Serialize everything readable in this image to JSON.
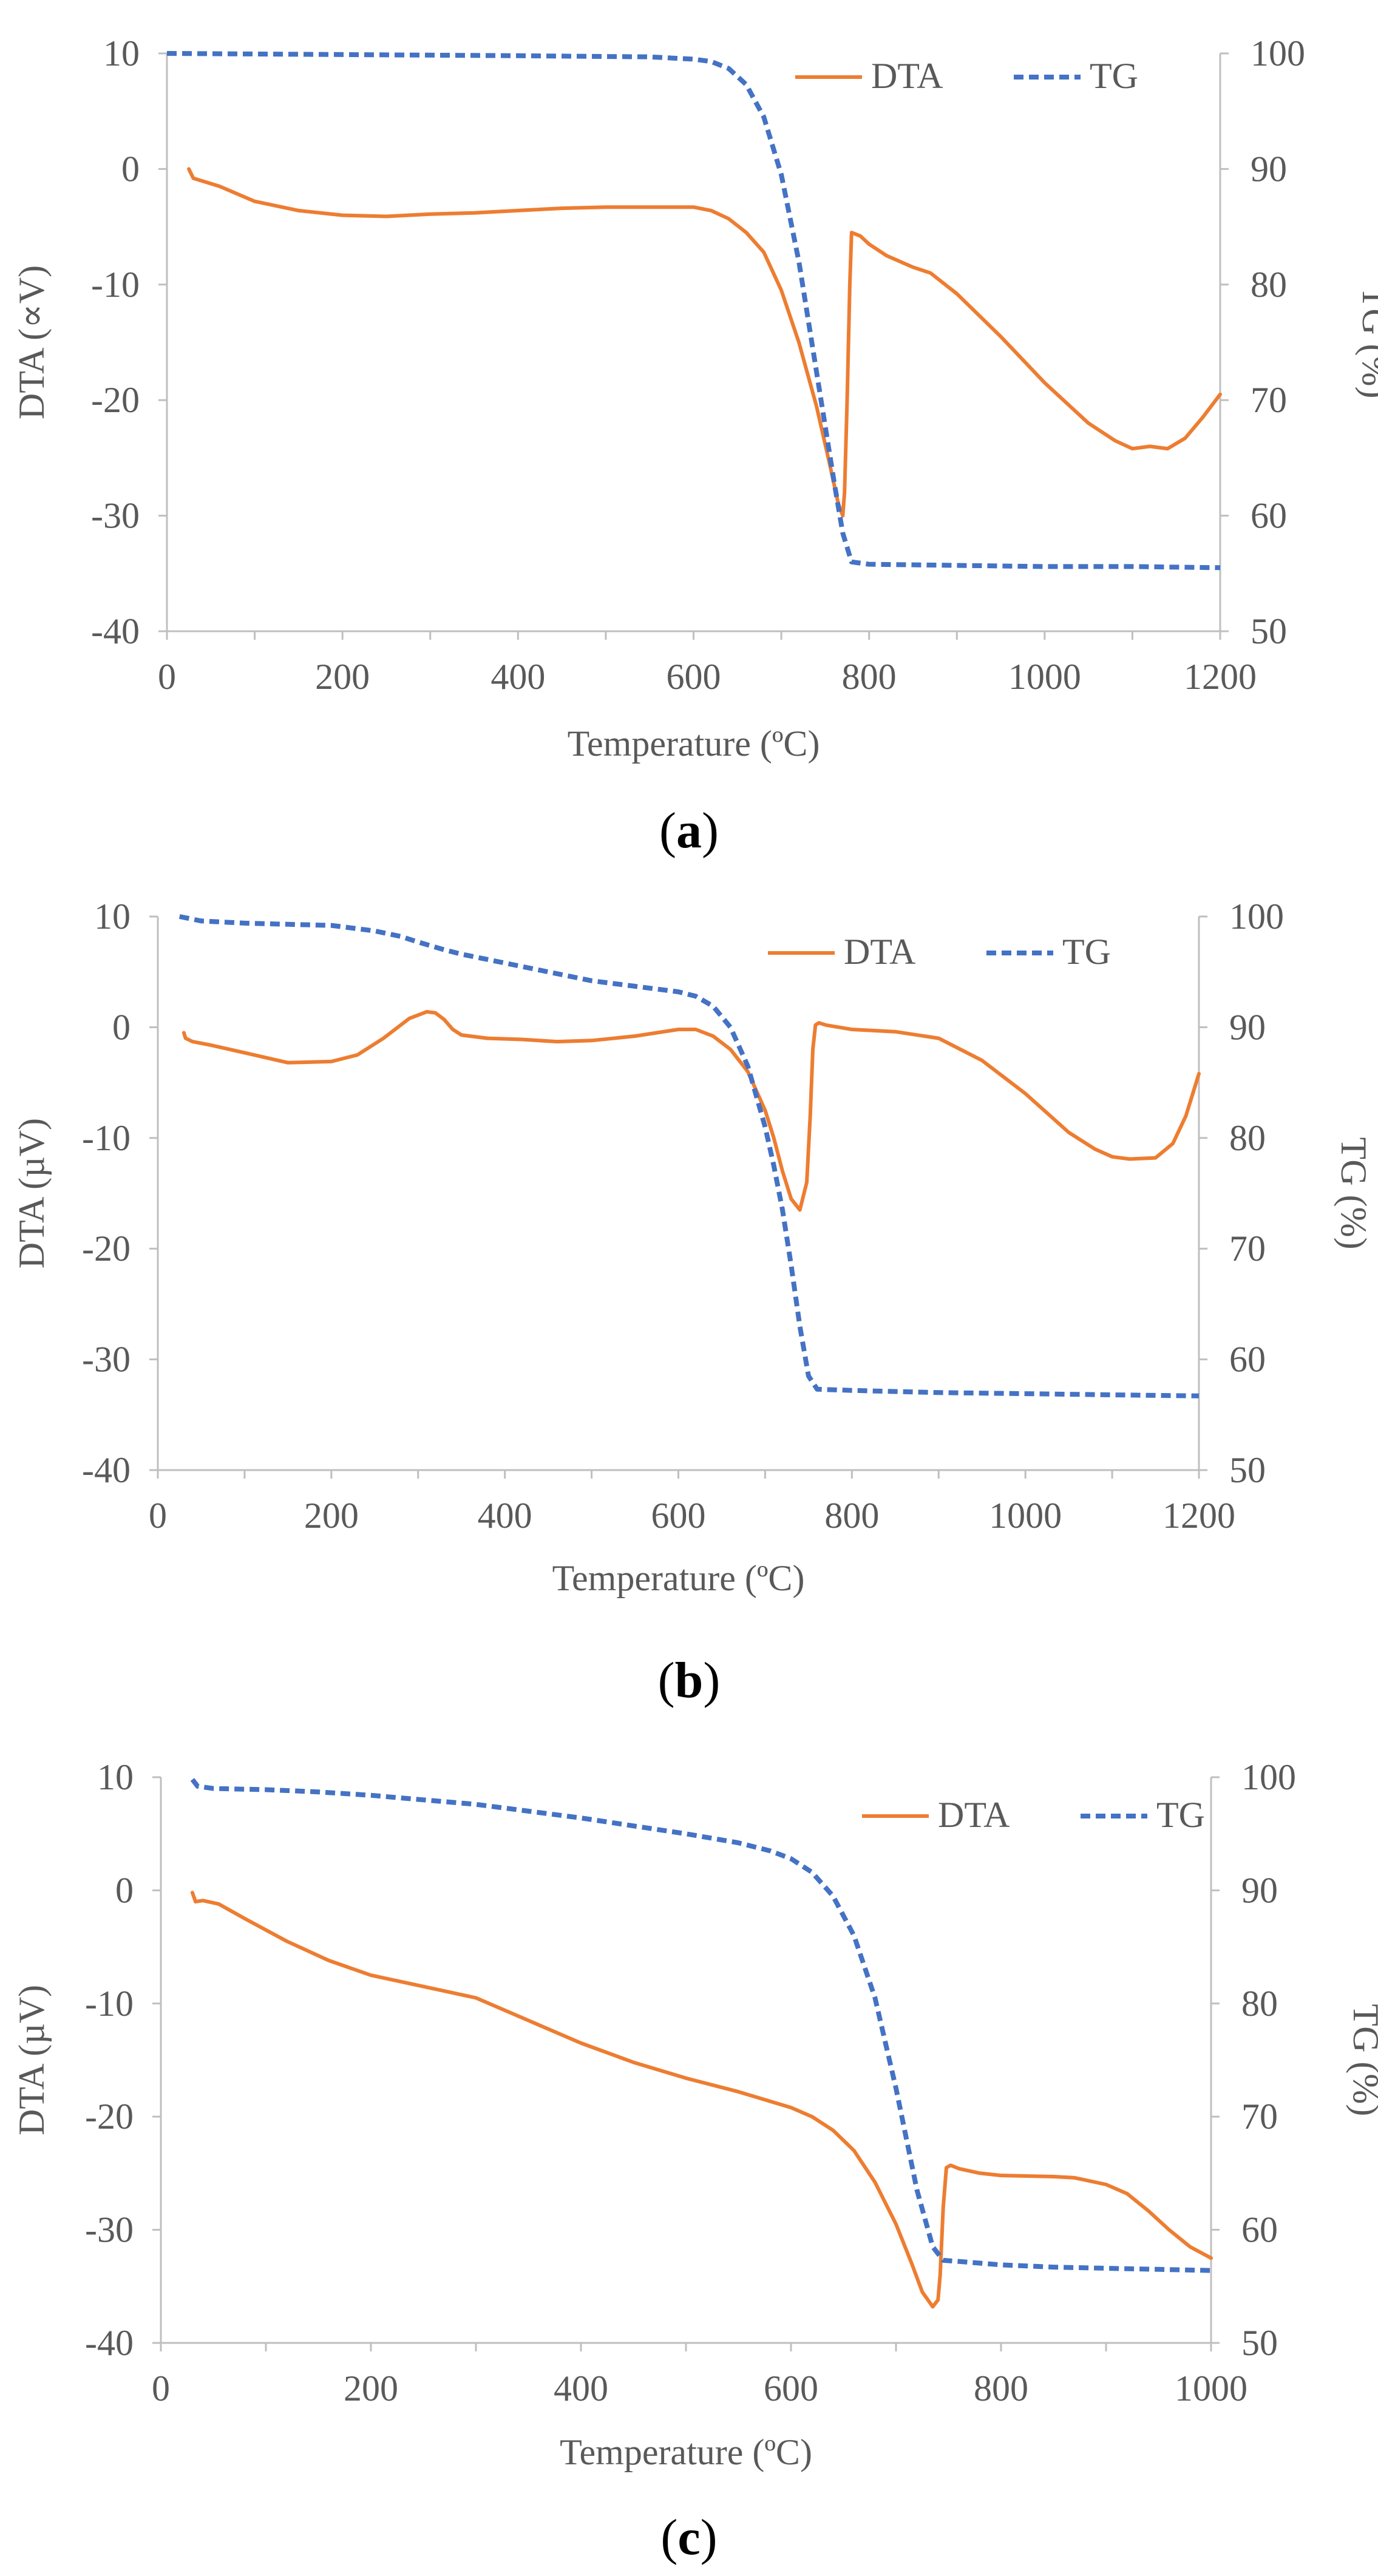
{
  "colors": {
    "dta": "#ED7D31",
    "tg": "#4472C4",
    "axis": "#BFBFBF",
    "text": "#595959"
  },
  "chart_data": [
    {
      "type": "line",
      "panel_label": "a",
      "xlabel": "Temperature (ºC)",
      "ylabel": "DTA (∝V)",
      "y2label": "TG (%)",
      "xlim": [
        0,
        1200
      ],
      "ylim": [
        -40,
        10
      ],
      "y2lim": [
        50,
        100
      ],
      "xticks": [
        "0",
        "200",
        "400",
        "600",
        "800",
        "1000",
        "1200"
      ],
      "yticks": [
        "-40",
        "-30",
        "-20",
        "-10",
        "0",
        "10"
      ],
      "y2ticks": [
        "50",
        "60",
        "70",
        "80",
        "90",
        "100"
      ],
      "legend": [
        "DTA",
        "TG"
      ],
      "series": [
        {
          "name": "DTA",
          "axis": "left",
          "style": "solid",
          "x": [
            25,
            30,
            60,
            100,
            150,
            200,
            250,
            300,
            350,
            400,
            450,
            500,
            550,
            600,
            620,
            640,
            660,
            680,
            700,
            720,
            740,
            755,
            765,
            770,
            772,
            775,
            778,
            780,
            790,
            800,
            820,
            850,
            870,
            900,
            950,
            1000,
            1050,
            1080,
            1100,
            1120,
            1140,
            1160,
            1180,
            1200
          ],
          "y": [
            0,
            -0.8,
            -1.5,
            -2.8,
            -3.6,
            -4.0,
            -4.1,
            -3.9,
            -3.8,
            -3.6,
            -3.4,
            -3.3,
            -3.3,
            -3.3,
            -3.6,
            -4.3,
            -5.5,
            -7.2,
            -10.5,
            -15,
            -20.5,
            -25.5,
            -29,
            -30,
            -28,
            -20,
            -10,
            -5.5,
            -5.8,
            -6.5,
            -7.5,
            -8.5,
            -9.0,
            -10.8,
            -14.5,
            -18.5,
            -22,
            -23.5,
            -24.2,
            -24.0,
            -24.2,
            -23.3,
            -21.5,
            -19.5
          ]
        },
        {
          "name": "TG",
          "axis": "right",
          "style": "dashed",
          "x": [
            0,
            200,
            400,
            550,
            600,
            620,
            640,
            660,
            680,
            700,
            720,
            740,
            760,
            770,
            780,
            800,
            900,
            1000,
            1100,
            1200
          ],
          "y": [
            100,
            99.9,
            99.8,
            99.7,
            99.5,
            99.3,
            98.7,
            97.3,
            94.5,
            89.5,
            82.0,
            72.5,
            63.0,
            58.5,
            56.0,
            55.8,
            55.7,
            55.6,
            55.6,
            55.5
          ]
        }
      ]
    },
    {
      "type": "line",
      "panel_label": "b",
      "xlabel": "Temperature (ºC)",
      "ylabel": "DTA (µV)",
      "y2label": "TG (%)",
      "xlim": [
        0,
        1200
      ],
      "ylim": [
        -40,
        10
      ],
      "y2lim": [
        50,
        100
      ],
      "xticks": [
        "0",
        "200",
        "400",
        "600",
        "800",
        "1000",
        "1200"
      ],
      "yticks": [
        "-40",
        "-30",
        "-20",
        "-10",
        "0",
        "10"
      ],
      "y2ticks": [
        "50",
        "60",
        "70",
        "80",
        "90",
        "100"
      ],
      "legend": [
        "DTA",
        "TG"
      ],
      "series": [
        {
          "name": "DTA",
          "axis": "left",
          "style": "solid",
          "x": [
            30,
            32,
            40,
            60,
            100,
            150,
            200,
            230,
            260,
            290,
            310,
            320,
            330,
            340,
            350,
            380,
            420,
            460,
            500,
            550,
            600,
            620,
            640,
            660,
            680,
            700,
            710,
            720,
            730,
            740,
            748,
            752,
            755,
            758,
            762,
            770,
            800,
            850,
            900,
            950,
            1000,
            1050,
            1080,
            1100,
            1120,
            1150,
            1170,
            1185,
            1200
          ],
          "y": [
            -0.5,
            -1.0,
            -1.3,
            -1.6,
            -2.3,
            -3.2,
            -3.1,
            -2.5,
            -1.0,
            0.8,
            1.4,
            1.3,
            0.7,
            -0.2,
            -0.7,
            -1.0,
            -1.1,
            -1.3,
            -1.2,
            -0.8,
            -0.2,
            -0.2,
            -0.8,
            -2.0,
            -4.0,
            -7.5,
            -10,
            -13,
            -15.5,
            -16.5,
            -14,
            -8,
            -2,
            0.2,
            0.4,
            0.2,
            -0.2,
            -0.4,
            -1.0,
            -3.0,
            -6.0,
            -9.5,
            -11,
            -11.7,
            -11.9,
            -11.8,
            -10.5,
            -8,
            -4.2
          ]
        },
        {
          "name": "TG",
          "axis": "right",
          "style": "dashed",
          "x": [
            25,
            50,
            100,
            150,
            200,
            250,
            280,
            300,
            330,
            350,
            400,
            450,
            500,
            550,
            600,
            620,
            640,
            660,
            680,
            700,
            710,
            720,
            730,
            740,
            750,
            760,
            800,
            900,
            1000,
            1100,
            1200
          ],
          "y": [
            100,
            99.6,
            99.4,
            99.3,
            99.2,
            98.7,
            98.2,
            97.7,
            97.0,
            96.6,
            95.8,
            95.0,
            94.2,
            93.7,
            93.2,
            92.8,
            91.9,
            90.0,
            86.5,
            81.0,
            77.5,
            73.5,
            68.5,
            63.0,
            58.5,
            57.3,
            57.2,
            57.0,
            56.9,
            56.8,
            56.7
          ]
        }
      ]
    },
    {
      "type": "line",
      "panel_label": "c",
      "xlabel": "Temperature (ºC)",
      "ylabel": "DTA (µV)",
      "y2label": "TG (%)",
      "xlim": [
        0,
        1000
      ],
      "ylim": [
        -40,
        10
      ],
      "y2lim": [
        50,
        100
      ],
      "xticks": [
        "0",
        "200",
        "400",
        "600",
        "800",
        "1000"
      ],
      "yticks": [
        "-40",
        "-30",
        "-20",
        "-10",
        "0",
        "10"
      ],
      "y2ticks": [
        "50",
        "60",
        "70",
        "80",
        "90",
        "100"
      ],
      "legend": [
        "DTA",
        "TG"
      ],
      "series": [
        {
          "name": "DTA",
          "axis": "left",
          "style": "solid",
          "x": [
            30,
            33,
            40,
            55,
            80,
            120,
            160,
            200,
            250,
            300,
            350,
            400,
            450,
            500,
            550,
            600,
            620,
            640,
            660,
            680,
            700,
            715,
            725,
            735,
            740,
            742,
            745,
            748,
            752,
            760,
            780,
            800,
            850,
            870,
            900,
            920,
            940,
            960,
            980,
            1000
          ],
          "y": [
            -0.2,
            -1.0,
            -0.9,
            -1.2,
            -2.5,
            -4.5,
            -6.2,
            -7.5,
            -8.5,
            -9.5,
            -11.5,
            -13.5,
            -15.2,
            -16.6,
            -17.8,
            -19.2,
            -20.0,
            -21.2,
            -23.0,
            -25.8,
            -29.5,
            -33.0,
            -35.5,
            -36.8,
            -36.2,
            -34.0,
            -28.0,
            -24.5,
            -24.3,
            -24.6,
            -25.0,
            -25.2,
            -25.3,
            -25.4,
            -26.0,
            -26.8,
            -28.3,
            -30.0,
            -31.5,
            -32.5
          ]
        },
        {
          "name": "TG",
          "axis": "right",
          "style": "dashed",
          "x": [
            30,
            35,
            50,
            100,
            150,
            200,
            250,
            300,
            350,
            400,
            450,
            500,
            550,
            580,
            600,
            620,
            640,
            660,
            680,
            700,
            720,
            735,
            745,
            760,
            800,
            850,
            900,
            950,
            1000
          ],
          "y": [
            99.8,
            99.2,
            99.0,
            98.9,
            98.7,
            98.4,
            98.0,
            97.6,
            97.0,
            96.4,
            95.7,
            95.0,
            94.2,
            93.5,
            92.8,
            91.6,
            89.5,
            86.0,
            80.5,
            72.5,
            63.5,
            58.5,
            57.3,
            57.2,
            56.9,
            56.7,
            56.6,
            56.5,
            56.4
          ]
        }
      ]
    }
  ]
}
